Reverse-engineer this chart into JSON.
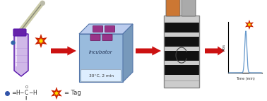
{
  "bg_color": "#ffffff",
  "arrow_color": "#cc1111",
  "star_outer": "#cc2200",
  "star_inner": "#ffdd00",
  "incubator_front": "#99bbdd",
  "incubator_top": "#bbccee",
  "incubator_right": "#7799bb",
  "incubator_text": "Incubator",
  "incubator_label": "30°C, 2 min",
  "chromatogram_color": "#6699cc",
  "legend_formula_text": "= Tag",
  "abs_label": "Abs",
  "time_label": "Time (min)",
  "tube_body": "#d0b8e8",
  "tube_cap": "#6622aa",
  "tube_outline": "#5511aa",
  "needle_color": "#ddddcc",
  "needle_tip": "#ccccaa",
  "well_color": "#993388",
  "col_black": "#111111",
  "col_white": "#dddddd",
  "col_gray": "#aaaaaa",
  "vial1_color": "#cc7733",
  "vial2_color": "#aaaaaa",
  "vial_cap": "#777777"
}
